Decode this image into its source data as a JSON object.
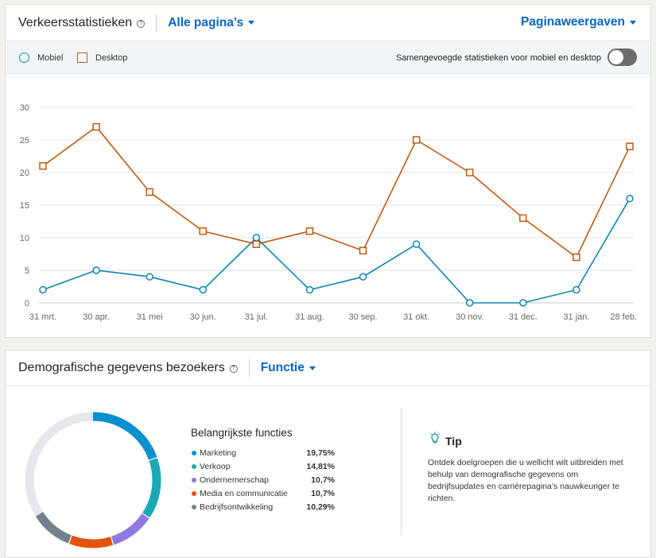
{
  "traffic": {
    "title": "Verkeersstatistieken",
    "help_symbol": "?",
    "pages_dropdown": "Alle pagina’s",
    "metric_dropdown": "Paginaweergaven",
    "legend": {
      "mobile": "Mobiel",
      "desktop": "Desktop"
    },
    "toggle_label": "Samengevoegde statistieken voor mobiel en desktop",
    "toggle_on": false
  },
  "chart_data": {
    "type": "line",
    "x": [
      "31 mrt.",
      "30 apr.",
      "31 mei",
      "30 jun.",
      "31 jul.",
      "31 aug.",
      "30 sep.",
      "31 okt.",
      "30 nov.",
      "31 dec.",
      "31 jan.",
      "28 feb."
    ],
    "series": [
      {
        "name": "Mobiel",
        "color": "#0e86b0",
        "marker": "circle",
        "values": [
          2,
          5,
          4,
          2,
          10,
          2,
          4,
          9,
          0,
          0,
          2,
          16
        ]
      },
      {
        "name": "Desktop",
        "color": "#c05a12",
        "marker": "square",
        "values": [
          21,
          27,
          17,
          11,
          9,
          11,
          8,
          25,
          20,
          13,
          7,
          24
        ]
      }
    ],
    "yticks": [
      0,
      5,
      10,
      15,
      20,
      25,
      30
    ],
    "ylim": [
      0,
      30
    ],
    "grid": true,
    "title": "",
    "xlabel": "",
    "ylabel": ""
  },
  "demographics": {
    "title": "Demografische gegevens bezoekers",
    "help_symbol": "?",
    "dropdown": "Functie",
    "list_title": "Belangrijkste functies",
    "functions": [
      {
        "name": "Marketing",
        "value": "19,75%",
        "pct": 19.75,
        "color": "#0a8fcf"
      },
      {
        "name": "Verkoop",
        "value": "14,81%",
        "pct": 14.81,
        "color": "#1aa8b4"
      },
      {
        "name": "Ondernemerschap",
        "value": "10,7%",
        "pct": 10.7,
        "color": "#8f7ae0"
      },
      {
        "name": "Media en communicatie",
        "value": "10,7%",
        "pct": 10.7,
        "color": "#e2540b"
      },
      {
        "name": "Bedrijfsontwikkeling",
        "value": "10,29%",
        "pct": 10.29,
        "color": "#74808e"
      }
    ],
    "remainder_color": "#e4e8ec",
    "tip": {
      "title": "Tip",
      "text": "Ontdek doelgroepen die u wellicht wilt uitbreiden met behulp van demografische gegevens om bedrijfsupdates en carrièrepagina’s nauwkeuriger te richten."
    }
  }
}
